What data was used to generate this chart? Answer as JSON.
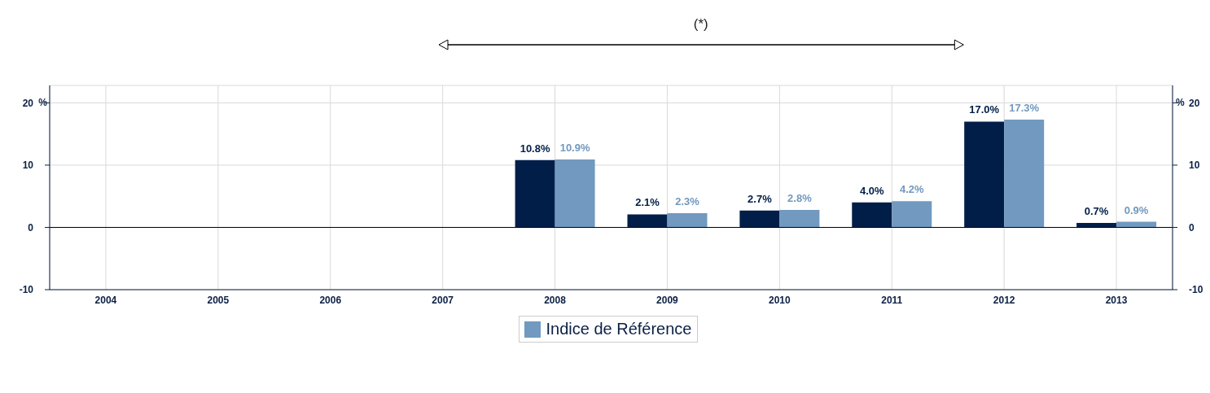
{
  "chart_data": {
    "type": "bar",
    "annotations": [
      "(*)"
    ],
    "categories": [
      "2004",
      "2005",
      "2006",
      "2007",
      "2008",
      "2009",
      "2010",
      "2011",
      "2012",
      "2013"
    ],
    "series": [
      {
        "color": "#001e48",
        "values": [
          null,
          null,
          null,
          null,
          10.8,
          2.1,
          2.7,
          4.0,
          17.0,
          0.7
        ],
        "value_labels": [
          null,
          null,
          null,
          null,
          "10.8%",
          "2.1%",
          "2.7%",
          "4.0%",
          "17.0%",
          "0.7%"
        ]
      },
      {
        "name": "Indice de Référence",
        "color": "#7299bf",
        "values": [
          null,
          null,
          null,
          null,
          10.9,
          2.3,
          2.8,
          4.2,
          17.3,
          0.9
        ],
        "value_labels": [
          null,
          null,
          null,
          null,
          "10.9%",
          "2.3%",
          "2.8%",
          "4.2%",
          "17.3%",
          "0.9%"
        ]
      }
    ],
    "ylabel": "%",
    "y2label": "%",
    "ylim": [
      -10,
      22.8
    ],
    "yticks": [
      -10,
      0,
      10,
      20
    ],
    "y2lim": [
      -10,
      22.8
    ],
    "y2ticks": [
      -10,
      0,
      10,
      20
    ],
    "ref_lines": [
      {
        "axis": "y",
        "value": 0,
        "color": "#000000"
      }
    ],
    "grid": true,
    "legend": "bottom"
  }
}
